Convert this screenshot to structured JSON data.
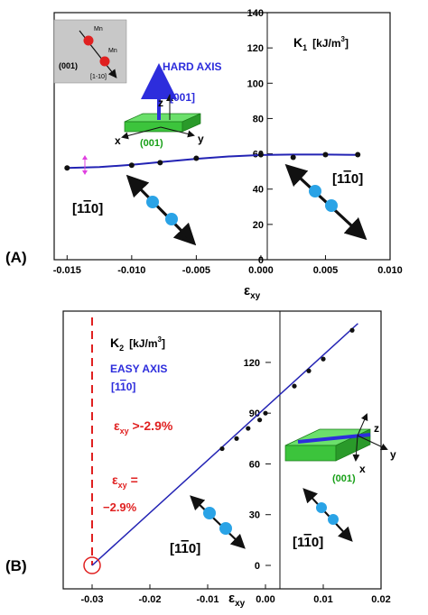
{
  "panels": [
    {
      "panel_label": "(A)",
      "xlabel_main": "ε",
      "xlabel_sub": "xy",
      "xticks": [
        "-0.015",
        "-0.010",
        "-0.005",
        "0.000",
        "0.005",
        "0.010"
      ],
      "yticks": [
        "0",
        "20",
        "40",
        "60",
        "80",
        "100",
        "120",
        "140"
      ],
      "quantity_main": "K",
      "quantity_sub": "1",
      "quantity_units": "[kJ/m",
      "quantity_units_sup": "3",
      "quantity_units_close": "]",
      "hard_axis_label": "HARD AXIS",
      "hard_axis_dir": "[001]",
      "axis_z": "z",
      "axis_x": "x",
      "axis_y": "y",
      "plane_label": "(001)",
      "dir_left": "[1",
      "dir_bar": "1",
      "dir_end": "0]",
      "dir_right": "[1",
      "dir_right_bar": "1",
      "dir_right_end": "0]",
      "inset_mn_top": "Mn",
      "inset_mn_mid": "Mn",
      "inset_plane": "(001)",
      "inset_dir": "[1-10]"
    },
    {
      "panel_label": "(B)",
      "xlabel_main": "ε",
      "xlabel_sub": "xy",
      "xticks": [
        "-0.03",
        "-0.02",
        "-0.01",
        "0.00",
        "0.01",
        "0.02"
      ],
      "yticks": [
        "0",
        "30",
        "60",
        "90",
        "120"
      ],
      "quantity_main": "K",
      "quantity_sub": "2",
      "quantity_units": "[kJ/m",
      "quantity_units_sup": "3",
      "quantity_units_close": "]",
      "easy_axis_label": "EASY AXIS",
      "easy_dir": "[1",
      "easy_dir_bar": "1",
      "easy_dir_end": "0]",
      "annot1_main": "ε",
      "annot1_sub": "xy",
      "annot1_rest": " >-2.9%",
      "annot2_main": "ε",
      "annot2_sub": "xy",
      "annot2_eq": "=",
      "annot2_val": "−2.9%",
      "axis_z": "z",
      "axis_x": "x",
      "axis_y": "y",
      "plane_label": "(001)",
      "dir_left": "[1",
      "dir_bar": "1",
      "dir_end": "0]",
      "dir_right": "[1",
      "dir_right_bar": "1",
      "dir_right_end": "0]"
    }
  ],
  "colors": {
    "curve": "#2323b4",
    "marker": "#111111",
    "hard_axis": "#2d2ddc",
    "red": "#e02020",
    "green": "#3cc43c",
    "atom": "#2aa3e6",
    "inset_bg": "#c8c8c8",
    "mn_atom": "#e02020"
  },
  "chart_data": [
    {
      "type": "scatter",
      "xlabel": "εxy",
      "ylabel": "K1 [kJ/m3]",
      "xlim": [
        -0.016,
        0.01
      ],
      "ylim": [
        0,
        140
      ],
      "series": [
        {
          "marker_x": [
            -0.015,
            -0.01,
            -0.0078,
            -0.005,
            0.0,
            0.0025,
            0.005,
            0.0075
          ],
          "marker_y": [
            52,
            53.5,
            55,
            57.5,
            59.5,
            58,
            59.5,
            59.5
          ],
          "fit_x": [
            -0.015,
            -0.0125,
            -0.01,
            -0.0075,
            -0.005,
            -0.0025,
            0.0,
            0.0025,
            0.005,
            0.0075
          ],
          "fit_y": [
            52,
            52.5,
            53.8,
            55.5,
            57.2,
            58.5,
            59.3,
            59.6,
            59.6,
            59.4
          ]
        }
      ],
      "grid": false
    },
    {
      "type": "scatter",
      "xlabel": "εxy",
      "ylabel": "K2 [kJ/m3]",
      "xlim": [
        -0.035,
        0.02
      ],
      "ylim": [
        0,
        145
      ],
      "series": [
        {
          "marker_x": [
            -0.0075,
            -0.005,
            -0.003,
            -0.001,
            0.0,
            0.005,
            0.0075,
            0.01,
            0.015
          ],
          "marker_y": [
            69,
            75,
            81,
            86,
            90,
            106,
            115,
            122,
            139
          ],
          "fit_x": [
            -0.03,
            0.016
          ],
          "fit_y": [
            0,
            143
          ]
        }
      ],
      "vertical_dashed_x": -0.03,
      "circle_marker_x": -0.03,
      "circle_marker_y": 0,
      "grid": false
    }
  ]
}
